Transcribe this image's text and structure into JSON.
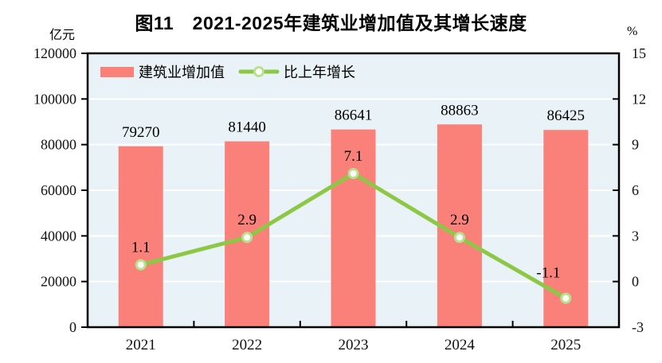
{
  "chart_data": {
    "type": "combo-bar-line",
    "title": "图11　2021-2025年建筑业增加值及其增长速度",
    "categories": [
      "2021",
      "2022",
      "2023",
      "2024",
      "2025"
    ],
    "series": [
      {
        "name": "建筑业增加值",
        "type": "bar",
        "axis": "left",
        "color": "#F9817A",
        "values": [
          79270,
          81440,
          86641,
          88863,
          86425
        ],
        "data_labels": [
          "79270",
          "81440",
          "86641",
          "88863",
          "86425"
        ]
      },
      {
        "name": "比上年增长",
        "type": "line",
        "axis": "right",
        "color": "#8CC846",
        "marker": {
          "fill": "#FFFFFF",
          "stroke": "#B9E08E"
        },
        "values": [
          1.1,
          2.9,
          7.1,
          2.9,
          -1.1
        ],
        "data_labels": [
          "1.1",
          "2.9",
          "7.1",
          "2.9",
          "-1.1"
        ]
      }
    ],
    "left_axis": {
      "label": "亿元",
      "min": 0,
      "max": 120000,
      "step": 20000,
      "ticks": [
        "120000",
        "100000",
        "80000",
        "60000",
        "40000",
        "20000",
        "0"
      ]
    },
    "right_axis": {
      "label": "%",
      "min": -3,
      "max": 15,
      "step": 3,
      "ticks": [
        "15",
        "12",
        "9",
        "6",
        "3",
        "0",
        "-3"
      ]
    },
    "legend": {
      "position": "top-left",
      "items": [
        "建筑业增加值",
        "比上年增长"
      ]
    },
    "plot": {
      "background": "#E9F2F6",
      "gridline_color": "#FFFFFF",
      "border_color": "#000000",
      "grid": "horizontal",
      "text_color": "#000000"
    }
  }
}
